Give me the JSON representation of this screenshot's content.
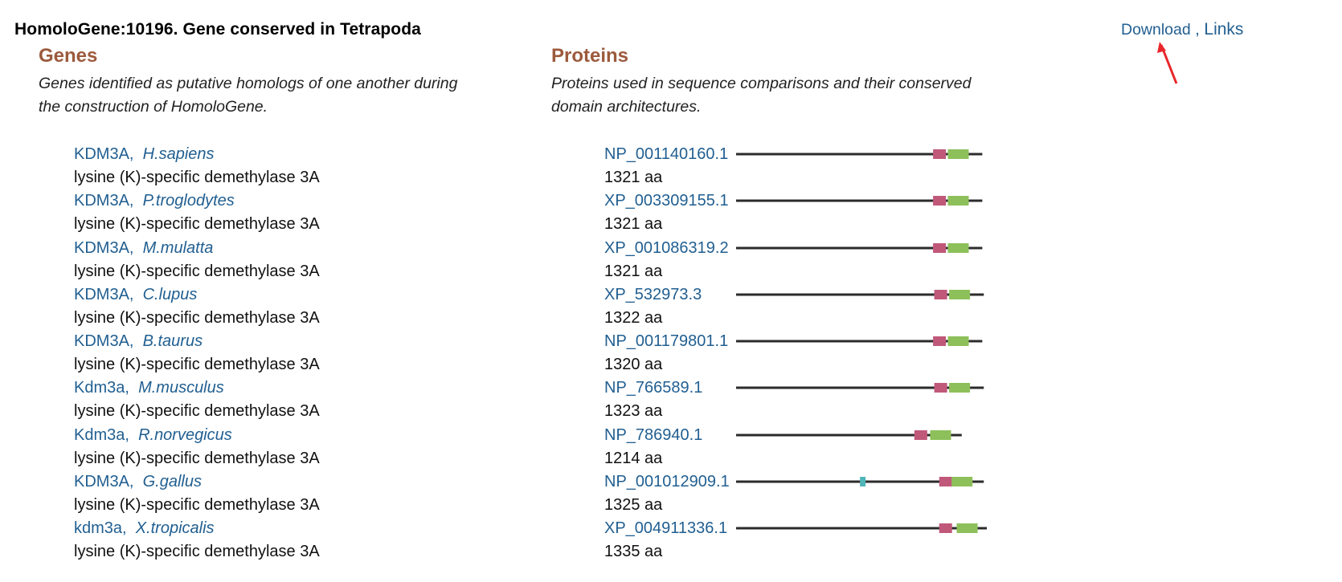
{
  "header": {
    "title": "HomoloGene:10196. Gene conserved in Tetrapoda",
    "download_label": "Download",
    "separator": " , ",
    "links_label": "Links"
  },
  "genes_section": {
    "heading": "Genes",
    "description_line1": "Genes identified as putative homologs of one another during",
    "description_line2": "the construction of HomoloGene."
  },
  "proteins_section": {
    "heading": "Proteins",
    "description_line1": "Proteins used in sequence comparisons and their conserved",
    "description_line2": "domain architectures."
  },
  "genes": [
    {
      "symbol": "KDM3A,",
      "species": "H.sapiens",
      "description": "lysine (K)-specific demethylase 3A"
    },
    {
      "symbol": "KDM3A,",
      "species": "P.troglodytes",
      "description": "lysine (K)-specific demethylase 3A"
    },
    {
      "symbol": "KDM3A,",
      "species": "M.mulatta",
      "description": "lysine (K)-specific demethylase 3A"
    },
    {
      "symbol": "KDM3A,",
      "species": "C.lupus",
      "description": "lysine (K)-specific demethylase 3A"
    },
    {
      "symbol": "KDM3A,",
      "species": "B.taurus",
      "description": "lysine (K)-specific demethylase 3A"
    },
    {
      "symbol": "Kdm3a,",
      "species": "M.musculus",
      "description": "lysine (K)-specific demethylase 3A"
    },
    {
      "symbol": "Kdm3a,",
      "species": "R.norvegicus",
      "description": "lysine (K)-specific demethylase 3A"
    },
    {
      "symbol": "KDM3A,",
      "species": "G.gallus",
      "description": "lysine (K)-specific demethylase 3A"
    },
    {
      "symbol": "kdm3a,",
      "species": "X.tropicalis",
      "description": "lysine (K)-specific demethylase 3A"
    }
  ],
  "proteins": [
    {
      "accession": "NP_001140160.1",
      "length": "1321 aa",
      "line_length": 0.982,
      "dom_b_pct": 0.8,
      "dom_c_pct": 0.86
    },
    {
      "accession": "XP_003309155.1",
      "length": "1321 aa",
      "line_length": 0.982,
      "dom_b_pct": 0.8,
      "dom_c_pct": 0.86
    },
    {
      "accession": "XP_001086319.2",
      "length": "1321 aa",
      "line_length": 0.982,
      "dom_b_pct": 0.8,
      "dom_c_pct": 0.86
    },
    {
      "accession": "XP_532973.3",
      "length": "1322 aa",
      "line_length": 0.988,
      "dom_b_pct": 0.8,
      "dom_c_pct": 0.86
    },
    {
      "accession": "NP_001179801.1",
      "length": "1320 aa",
      "line_length": 0.982,
      "dom_b_pct": 0.8,
      "dom_c_pct": 0.86
    },
    {
      "accession": "NP_766589.1",
      "length": "1323 aa",
      "line_length": 0.988,
      "dom_b_pct": 0.8,
      "dom_c_pct": 0.86
    },
    {
      "accession": "NP_786940.1",
      "length": "1214 aa",
      "line_length": 0.9,
      "dom_b_pct": 0.79,
      "dom_c_pct": 0.86
    },
    {
      "accession": "NP_001012909.1",
      "length": "1325 aa",
      "line_length": 0.988,
      "dom_a_pct": 0.5,
      "dom_b_pct": 0.82,
      "dom_c_pct": 0.87
    },
    {
      "accession": "XP_004911336.1",
      "length": "1335 aa",
      "line_length": 1.0,
      "dom_b_pct": 0.81,
      "dom_c_pct": 0.88
    }
  ],
  "colors": {
    "link": "#215f91",
    "heading": "#9c5a3c",
    "domain_a": "#4fb5b9",
    "domain_b": "#c0587a",
    "domain_c": "#8dc05a",
    "backbone": "#2b2b2b",
    "arrow": "#e8262b"
  }
}
